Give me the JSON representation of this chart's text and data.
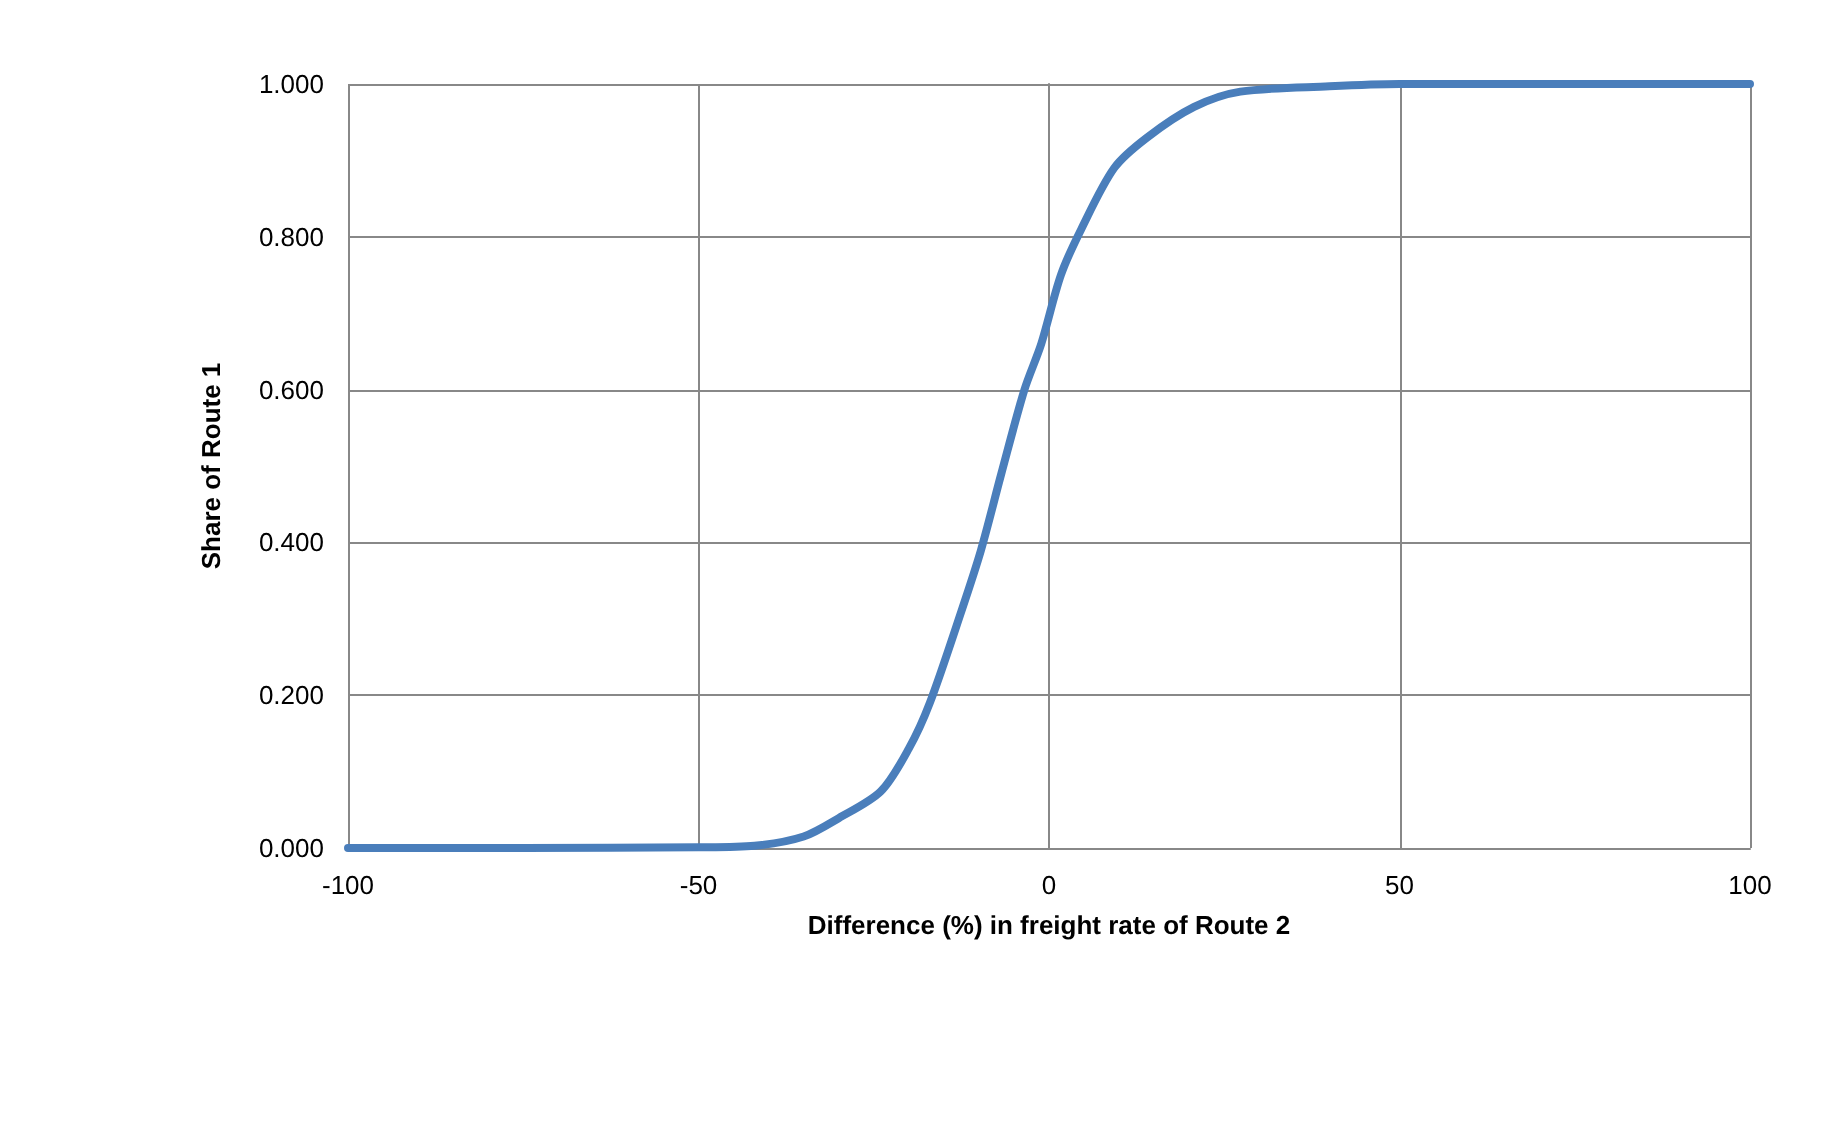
{
  "chart_data": {
    "type": "line",
    "xlabel": "Difference (%) in freight rate of Route 2",
    "ylabel": "Share of Route 1",
    "series": [
      {
        "color": "#4a7ebb",
        "x": [
          -100,
          -75,
          -50,
          -42,
          -35,
          -30,
          -24,
          -20,
          -17,
          -12.5,
          -9.7,
          -6.8,
          -3.5,
          -1.1,
          1.7,
          4.6,
          9.3,
          14,
          20.7,
          27.3,
          40,
          50,
          75,
          100
        ],
        "values": [
          0,
          0,
          0.001,
          0.003,
          0.015,
          0.039,
          0.074,
          0.13,
          0.19,
          0.31,
          0.39,
          0.49,
          0.6,
          0.66,
          0.75,
          0.81,
          0.89,
          0.93,
          0.97,
          0.99,
          0.997,
          1,
          1,
          1
        ]
      }
    ],
    "xlim": [
      -100,
      100
    ],
    "xticks": [
      -100,
      -50,
      0,
      50,
      100
    ],
    "ylim": [
      0,
      1
    ],
    "yticks": [
      {
        "value": 0,
        "label": "0.000"
      },
      {
        "value": 0.2,
        "label": "0.200"
      },
      {
        "value": 0.4,
        "label": "0.400"
      },
      {
        "value": 0.6,
        "label": "0.600"
      },
      {
        "value": 0.8,
        "label": "0.800"
      },
      {
        "value": 1,
        "label": "1.000"
      }
    ],
    "grid": true,
    "marker": "none",
    "line_style": "solid"
  }
}
